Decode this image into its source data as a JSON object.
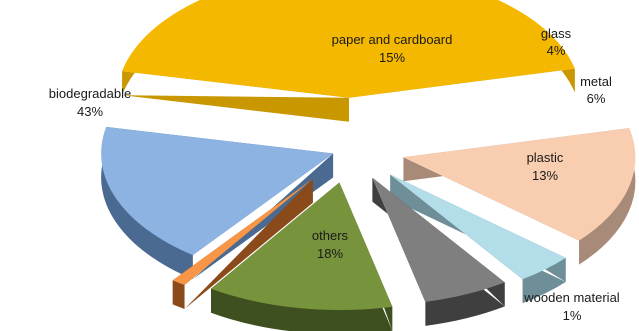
{
  "chart_data": {
    "type": "pie",
    "title": "",
    "style": "3d-exploded",
    "legend": "none",
    "slices": [
      {
        "label": "biodegradable",
        "value": 43,
        "value_label": "43%",
        "color": "#f5b800",
        "side": "#c99800"
      },
      {
        "label": "paper and cardboard",
        "value": 15,
        "value_label": "15%",
        "color": "#f8cdb0",
        "side": "#a88a78"
      },
      {
        "label": "glass",
        "value": 4,
        "value_label": "4%",
        "color": "#b3dde8",
        "side": "#6e8e98"
      },
      {
        "label": "metal",
        "value": 6,
        "value_label": "6%",
        "color": "#7f7f7f",
        "side": "#3f3f3f"
      },
      {
        "label": "plastic",
        "value": 13,
        "value_label": "13%",
        "color": "#77933c",
        "side": "#3f5020"
      },
      {
        "label": "wooden material",
        "value": 1,
        "value_label": "1%",
        "color": "#f79646",
        "side": "#8a4a1a"
      },
      {
        "label": "others",
        "value": 18,
        "value_label": "18%",
        "color": "#8db3e2",
        "side": "#4a6a92"
      }
    ]
  }
}
